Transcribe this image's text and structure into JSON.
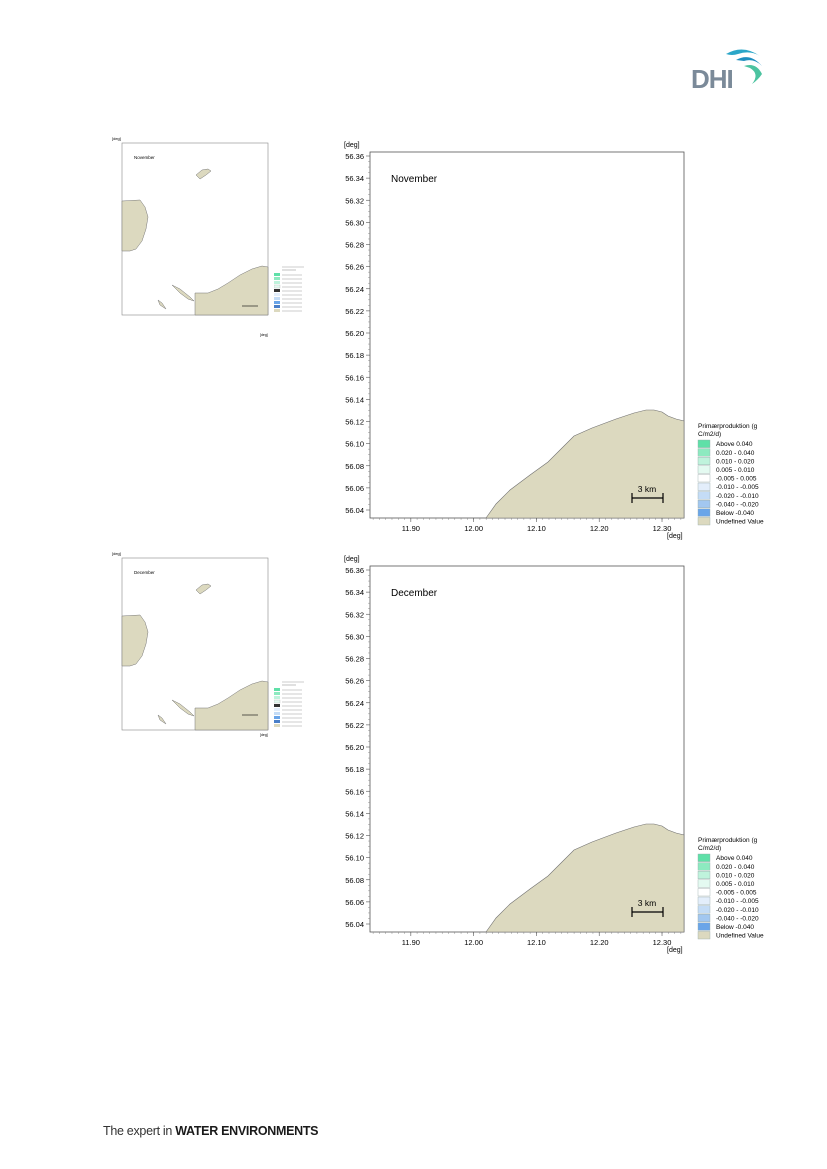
{
  "brand": {
    "logo_text": "DHI",
    "footer_prefix": "The expert in ",
    "footer_bold": "WATER ENVIRONMENTS"
  },
  "colors": {
    "land": "#dcd9bf",
    "land_edge": "#707070",
    "accent": "#2aa6c8"
  },
  "legend": {
    "title_line1": "Primærproduktion (g",
    "title_line2": "C/m2/d)",
    "entries": [
      {
        "label": "Above   0.040",
        "color": "#5fe0a8"
      },
      {
        "label": "0.020 -  0.040",
        "color": "#8deac0"
      },
      {
        "label": "0.010 -  0.020",
        "color": "#bff3dc"
      },
      {
        "label": "0.005 -  0.010",
        "color": "#e4faf1"
      },
      {
        "label": "-0.005 -  0.005",
        "color": "#ffffff"
      },
      {
        "label": "-0.010 - -0.005",
        "color": "#e3eefb"
      },
      {
        "label": "-0.020 - -0.010",
        "color": "#c4dcf6"
      },
      {
        "label": "-0.040 - -0.020",
        "color": "#a2c7f0"
      },
      {
        "label": "Below   -0.040",
        "color": "#6aa5e8"
      },
      {
        "label": "Undefined Value",
        "color": "#dcd9bf"
      }
    ]
  },
  "maps": [
    {
      "month": "November",
      "deg_label": "[deg]",
      "y_ticks": [
        "56.36",
        "56.34",
        "56.32",
        "56.30",
        "56.28",
        "56.26",
        "56.24",
        "56.22",
        "56.20",
        "56.18",
        "56.16",
        "56.14",
        "56.12",
        "56.10",
        "56.08",
        "56.06",
        "56.04"
      ],
      "x_ticks": [
        "11.90",
        "12.00",
        "12.10",
        "12.20",
        "12.30"
      ],
      "scale_bar": "3 km"
    },
    {
      "month": "December",
      "deg_label": "[deg]",
      "y_ticks": [
        "56.36",
        "56.34",
        "56.32",
        "56.30",
        "56.28",
        "56.26",
        "56.24",
        "56.22",
        "56.20",
        "56.18",
        "56.16",
        "56.14",
        "56.12",
        "56.10",
        "56.08",
        "56.06",
        "56.04"
      ],
      "x_ticks": [
        "11.90",
        "12.00",
        "12.10",
        "12.20",
        "12.30"
      ],
      "scale_bar": "3 km"
    }
  ],
  "thumbnails": [
    {
      "month": "November",
      "deg_label": "[deg]"
    },
    {
      "month": "December",
      "deg_label": "[deg]"
    }
  ]
}
